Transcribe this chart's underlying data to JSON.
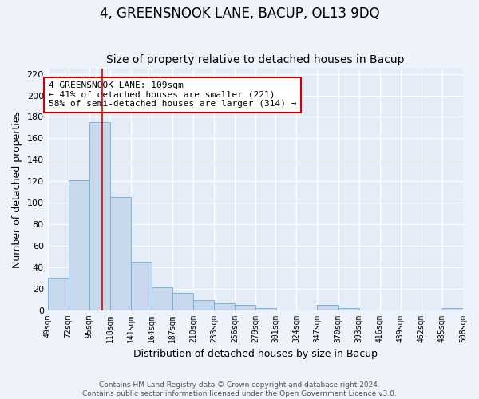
{
  "title": "4, GREENSNOOK LANE, BACUP, OL13 9DQ",
  "subtitle": "Size of property relative to detached houses in Bacup",
  "xlabel": "Distribution of detached houses by size in Bacup",
  "ylabel": "Number of detached properties",
  "bin_edges": [
    49,
    72,
    95,
    118,
    141,
    164,
    187,
    210,
    233,
    256,
    279,
    301,
    324,
    347,
    370,
    393,
    416,
    439,
    462,
    485,
    508
  ],
  "bar_heights": [
    30,
    121,
    175,
    105,
    45,
    21,
    16,
    9,
    6,
    5,
    2,
    0,
    0,
    5,
    2,
    0,
    0,
    0,
    0,
    2
  ],
  "bar_color": "#c8d8ed",
  "bar_edge_color": "#6aaed6",
  "bar_edge_width": 0.6,
  "red_line_x": 109,
  "red_line_color": "#dd0000",
  "ylim": [
    0,
    225
  ],
  "yticks": [
    0,
    20,
    40,
    60,
    80,
    100,
    120,
    140,
    160,
    180,
    200,
    220
  ],
  "annotation_text": "4 GREENSNOOK LANE: 109sqm\n← 41% of detached houses are smaller (221)\n58% of semi-detached houses are larger (314) →",
  "annotation_fontsize": 8.0,
  "annotation_box_color": "white",
  "annotation_box_edge_color": "#cc0000",
  "footer_text": "Contains HM Land Registry data © Crown copyright and database right 2024.\nContains public sector information licensed under the Open Government Licence v3.0.",
  "title_fontsize": 12,
  "subtitle_fontsize": 10,
  "ylabel_fontsize": 9,
  "xlabel_fontsize": 9,
  "tick_fontsize": 7,
  "footer_fontsize": 6.5,
  "background_color": "#eef2fa",
  "axes_face_color": "#e4ecf7",
  "grid_color": "#ffffff"
}
